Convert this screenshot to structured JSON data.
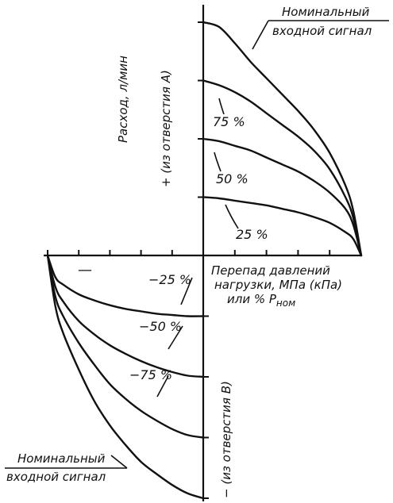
{
  "chart_data": {
    "type": "line",
    "title": "",
    "xlabel_lines": [
      "Перепад давлений",
      "нагрузки, МПа (кПа)",
      "или % P"
    ],
    "xlabel_subscript": "ном",
    "ylabel_top": "Расход, л/мин",
    "ylabel_top_sub": "+ (из отверстия А)",
    "ylabel_bottom": "− (из отверстия В)",
    "minus_sign": "—",
    "annotations": {
      "nominal_top_line1": "Номинальный",
      "nominal_top_line2": "входной сигнал",
      "nominal_bottom_line1": "Номинальный",
      "nominal_bottom_line2": "входной сигнал"
    },
    "x_range": [
      0,
      100
    ],
    "y_range": [
      -100,
      100
    ],
    "grid": false,
    "series": [
      {
        "name": "Номинальный входной сигнал",
        "quadrant": "positive",
        "x": [
          0,
          10,
          20,
          30,
          40,
          50,
          60,
          70,
          80,
          90,
          95,
          100
        ],
        "y": [
          100,
          98,
          91,
          83,
          76,
          69,
          62,
          54,
          44,
          30,
          19,
          0
        ]
      },
      {
        "name": "75 %",
        "quadrant": "positive",
        "x": [
          0,
          10,
          20,
          30,
          40,
          50,
          60,
          70,
          80,
          90,
          95,
          100
        ],
        "y": [
          75,
          73,
          70,
          66,
          61,
          56,
          51,
          45,
          37,
          25,
          16,
          0
        ]
      },
      {
        "name": "50 %",
        "quadrant": "positive",
        "x": [
          0,
          10,
          20,
          30,
          40,
          50,
          60,
          70,
          80,
          90,
          95,
          100
        ],
        "y": [
          50,
          49,
          47,
          45,
          42,
          39,
          36,
          32,
          27,
          20,
          13,
          0
        ]
      },
      {
        "name": "25 %",
        "quadrant": "positive",
        "x": [
          0,
          10,
          20,
          30,
          40,
          50,
          60,
          70,
          80,
          90,
          95,
          100
        ],
        "y": [
          25,
          24.5,
          23.5,
          22.5,
          21.5,
          20,
          18.5,
          16.5,
          14,
          10,
          7,
          0
        ]
      },
      {
        "name": "-25 %",
        "quadrant": "negative",
        "x": [
          100,
          95,
          90,
          80,
          70,
          60,
          50,
          40,
          30,
          20,
          10,
          0
        ],
        "y": [
          0,
          -9,
          -12,
          -16,
          -18.5,
          -20.5,
          -22,
          -23,
          -24,
          -24.5,
          -25,
          -25
        ]
      },
      {
        "name": "-50 %",
        "quadrant": "negative",
        "x": [
          100,
          95,
          90,
          80,
          70,
          60,
          50,
          40,
          30,
          20,
          10,
          0
        ],
        "y": [
          0,
          -13,
          -19,
          -27,
          -32.5,
          -37,
          -40.5,
          -43.5,
          -46,
          -48,
          -49.5,
          -50
        ]
      },
      {
        "name": "-75 %",
        "quadrant": "negative",
        "x": [
          100,
          95,
          90,
          80,
          70,
          60,
          50,
          40,
          30,
          20,
          10,
          0
        ],
        "y": [
          0,
          -17,
          -25,
          -36,
          -45,
          -53,
          -59,
          -64,
          -68,
          -71.5,
          -74,
          -75
        ]
      },
      {
        "name": "Номинальный входной сигнал",
        "quadrant": "negative",
        "x": [
          100,
          95,
          90,
          80,
          70,
          60,
          50,
          40,
          30,
          20,
          10,
          0
        ],
        "y": [
          0,
          -21,
          -32,
          -47,
          -60,
          -70,
          -78,
          -85,
          -90,
          -94.5,
          -98,
          -100
        ]
      }
    ],
    "series_labels": {
      "p75": "75 %",
      "p50": "50 %",
      "p25": "25 %",
      "m25": "−25 %",
      "m50": "−50 %",
      "m75": "−75 %"
    }
  }
}
